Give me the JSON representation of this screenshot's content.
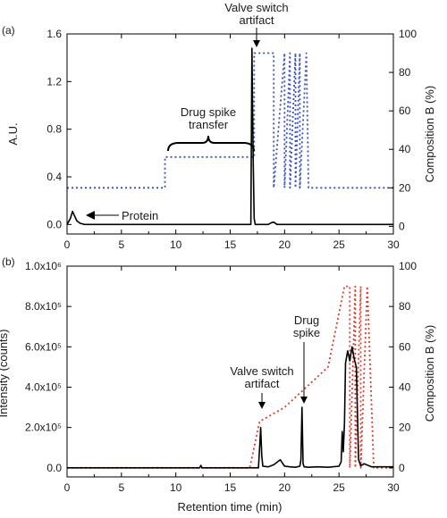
{
  "chart_data": [
    {
      "type": "line",
      "panel_label": "(a)",
      "ylabel": "A.U.",
      "y2label": "Composition B (%)",
      "xlim": [
        0,
        30
      ],
      "ylim": [
        -0.08,
        1.6
      ],
      "y2lim": [
        -4,
        100
      ],
      "xticks": [
        0,
        5,
        10,
        15,
        20,
        25,
        30
      ],
      "xtick_labels": [
        "0",
        "5",
        "10",
        "15",
        "20",
        "25",
        "30"
      ],
      "yticks": [
        0.0,
        0.4,
        0.8,
        1.2,
        1.6
      ],
      "ytick_labels": [
        "0.0",
        "0.4",
        "0.8",
        "1.2",
        "1.6"
      ],
      "y2ticks": [
        0,
        20,
        40,
        60,
        80,
        100
      ],
      "y2tick_labels": [
        "0",
        "20",
        "40",
        "60",
        "80",
        "100"
      ],
      "annotations": [
        {
          "text": "Valve switch",
          "text2": "artifact"
        },
        {
          "text": "Drug spike",
          "text2": "transfer"
        },
        {
          "text": "Protein"
        }
      ],
      "series": [
        {
          "color": "#000000",
          "style": "solid",
          "axis": "left",
          "x": [
            0,
            0.3,
            0.5,
            0.7,
            0.9,
            1.2,
            1.6,
            2.5,
            5,
            10,
            15,
            16.9,
            17.0,
            17.1,
            17.2,
            17.3,
            18.5,
            18.8,
            19.0,
            19.3,
            20,
            25,
            30
          ],
          "y": [
            0.0,
            0.05,
            0.11,
            0.07,
            0.03,
            0.01,
            0.0,
            0.0,
            0.0,
            0.0,
            0.0,
            0.0,
            1.48,
            0.6,
            0.05,
            0.0,
            0.0,
            0.015,
            0.02,
            0.0,
            0.0,
            0.0,
            0.0
          ]
        },
        {
          "color": "#3b4fb8",
          "style": "dotted",
          "axis": "right",
          "x": [
            0,
            9,
            9,
            17.2,
            17.2,
            19.0,
            19.0,
            20.0,
            20.0,
            20.5,
            20.5,
            21.0,
            21.0,
            21.4,
            21.4,
            22.0,
            22.2,
            30
          ],
          "y": [
            20,
            20,
            36,
            36,
            90,
            90,
            20,
            90,
            20,
            90,
            20,
            90,
            20,
            90,
            20,
            90,
            20,
            20
          ]
        }
      ]
    },
    {
      "type": "line",
      "panel_label": "(b)",
      "xlabel": "Retention time (min)",
      "ylabel": "Intensity (counts)",
      "y2label": "Composition B (%)",
      "xlim": [
        0,
        30
      ],
      "ylim": [
        -45000,
        1000000
      ],
      "y2lim": [
        -4.5,
        100
      ],
      "xticks": [
        0,
        5,
        10,
        15,
        20,
        25,
        30
      ],
      "xtick_labels": [
        "0",
        "5",
        "10",
        "15",
        "20",
        "25",
        "30"
      ],
      "yticks": [
        0,
        200000,
        400000,
        600000,
        800000,
        1000000
      ],
      "ytick_labels": [
        "0.0",
        "2.0x10⁵",
        "4.0x10⁵",
        "6.0x10⁵",
        "8.0x10⁵",
        "1.0x10⁶"
      ],
      "y2ticks": [
        0,
        20,
        40,
        60,
        80,
        100
      ],
      "y2tick_labels": [
        "0",
        "20",
        "40",
        "60",
        "80",
        "100"
      ],
      "annotations": [
        {
          "text": "Valve switch",
          "text2": "artifact"
        },
        {
          "text": "Drug",
          "text2": "spike"
        }
      ],
      "series": [
        {
          "color": "#000000",
          "style": "solid",
          "axis": "left",
          "x": [
            0,
            12.2,
            12.3,
            12.4,
            16,
            17.6,
            17.7,
            17.8,
            17.9,
            18.0,
            18.5,
            19,
            19.6,
            20,
            20.5,
            21,
            21.4,
            21.5,
            21.6,
            21.7,
            21.8,
            22.2,
            23,
            24,
            25,
            25.2,
            25.3,
            25.4,
            25.5,
            25.6,
            25.8,
            26.0,
            26.2,
            26.4,
            26.6,
            26.8,
            27.0,
            27.3,
            28,
            30
          ],
          "y": [
            0,
            0,
            12000,
            0,
            0,
            0,
            100000,
            200000,
            60000,
            8000,
            5000,
            15000,
            40000,
            8000,
            5000,
            3000,
            8000,
            40000,
            300000,
            20000,
            5000,
            3000,
            5000,
            3000,
            8000,
            30000,
            180000,
            80000,
            220000,
            520000,
            580000,
            530000,
            600000,
            540000,
            500000,
            40000,
            10000,
            20000,
            5000,
            5000
          ]
        },
        {
          "color": "#e03c2c",
          "style": "dotted",
          "axis": "right",
          "x": [
            0,
            16.8,
            17.7,
            20,
            24,
            25.5,
            26.0,
            26.0,
            26.5,
            26.5,
            27.0,
            27.0,
            27.6,
            28.2,
            30
          ],
          "y": [
            0,
            0,
            23,
            30,
            50,
            90,
            90,
            0,
            90,
            0,
            90,
            0,
            90,
            0,
            0
          ]
        }
      ]
    }
  ]
}
